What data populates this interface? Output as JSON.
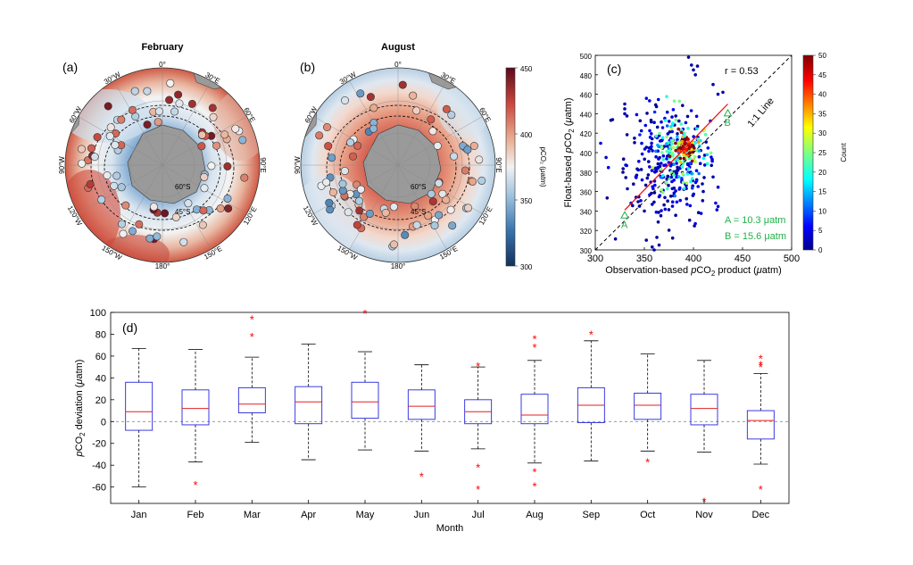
{
  "chart_data": [
    {
      "type": "heatmap",
      "panel": "(a)",
      "title": "February",
      "lat_labels": [
        "45°S",
        "60°S"
      ],
      "lon_labels": [
        "0°",
        "30°E",
        "60°E",
        "90°E",
        "120°E",
        "150°E",
        "180°",
        "150°W",
        "120°W",
        "90°W",
        "60°W",
        "30°W"
      ]
    },
    {
      "type": "heatmap",
      "panel": "(b)",
      "title": "August",
      "lat_labels": [
        "45°S",
        "60°S"
      ],
      "lon_labels": [
        "0°",
        "30°E",
        "60°E",
        "90°E",
        "120°E",
        "150°E",
        "180°",
        "150°W",
        "120°W",
        "90°W",
        "60°W",
        "30°W"
      ],
      "colorbar": {
        "label": "pCO₂ (μatm)",
        "ticks": [
          300,
          350,
          400,
          450
        ],
        "range": [
          300,
          450
        ]
      }
    },
    {
      "type": "scatter",
      "panel": "(c)",
      "xlabel_parts": [
        "Observation-based ",
        "p",
        "CO",
        "2",
        " product (",
        "μ",
        "atm)"
      ],
      "ylabel_parts": [
        "Float-based ",
        "p",
        "CO",
        "2",
        " (",
        "μ",
        "atm)"
      ],
      "xlim": [
        300,
        500
      ],
      "ylim": [
        300,
        500
      ],
      "xticks": [
        300,
        350,
        400,
        450,
        500
      ],
      "yticks": [
        300,
        320,
        340,
        360,
        380,
        400,
        420,
        440,
        460,
        480,
        500
      ],
      "annotations": {
        "r": "r = 0.53",
        "line": "1:1 Line",
        "A_label": "A",
        "B_label": "B",
        "A_value": "A = 10.3 μatm",
        "B_value": "B = 15.6 μatm"
      },
      "regression": {
        "x": [
          330,
          435
        ],
        "y": [
          341,
          450
        ]
      },
      "point_A": [
        330,
        330
      ],
      "point_B": [
        435,
        435
      ],
      "colorbar": {
        "label": "Count",
        "ticks": [
          0,
          5,
          10,
          15,
          20,
          25,
          30,
          35,
          40,
          45,
          50
        ],
        "range": [
          0,
          50
        ]
      },
      "clusters": [
        {
          "cx": 392,
          "cy": 405,
          "sx": 6,
          "sy": 8,
          "n": 70,
          "count": 42
        },
        {
          "cx": 385,
          "cy": 400,
          "sx": 14,
          "sy": 18,
          "n": 130,
          "count": 20
        },
        {
          "cx": 375,
          "cy": 390,
          "sx": 20,
          "sy": 28,
          "n": 170,
          "count": 6
        },
        {
          "cx": 370,
          "cy": 380,
          "sx": 25,
          "sy": 40,
          "n": 110,
          "count": 1
        }
      ],
      "outliers": [
        [
          330,
          450
        ],
        [
          330,
          445
        ],
        [
          330,
          440
        ],
        [
          395,
          498
        ],
        [
          398,
          490
        ],
        [
          400,
          485
        ],
        [
          402,
          480
        ],
        [
          420,
          470
        ],
        [
          430,
          462
        ],
        [
          425,
          460
        ],
        [
          360,
          300
        ],
        [
          358,
          303
        ],
        [
          352,
          310
        ],
        [
          365,
          305
        ],
        [
          350,
          340
        ],
        [
          345,
          345
        ],
        [
          410,
          360
        ],
        [
          420,
          375
        ]
      ]
    },
    {
      "type": "box",
      "panel": "(d)",
      "xlabel": "Month",
      "ylabel_parts": [
        "p",
        "CO",
        "2",
        " deviation (",
        "μ",
        "atm)"
      ],
      "ylim": [
        -75,
        100
      ],
      "yticks": [
        -60,
        -40,
        -20,
        0,
        20,
        40,
        60,
        80,
        100
      ],
      "categories": [
        "Jan",
        "Feb",
        "Mar",
        "Apr",
        "May",
        "Jun",
        "Jul",
        "Aug",
        "Sep",
        "Oct",
        "Nov",
        "Dec"
      ],
      "boxes": [
        {
          "lw": -60,
          "q1": -8,
          "med": 9,
          "q3": 36,
          "uw": 67,
          "outliers": []
        },
        {
          "lw": -37,
          "q1": -3,
          "med": 12,
          "q3": 29,
          "uw": 66,
          "outliers": [
            -58
          ]
        },
        {
          "lw": -19,
          "q1": 8,
          "med": 16,
          "q3": 31,
          "uw": 59,
          "outliers": [
            78,
            94
          ]
        },
        {
          "lw": -35,
          "q1": -2,
          "med": 18,
          "q3": 32,
          "uw": 71,
          "outliers": []
        },
        {
          "lw": -26,
          "q1": 3,
          "med": 18,
          "q3": 36,
          "uw": 64,
          "outliers": [
            99
          ]
        },
        {
          "lw": -27,
          "q1": 2,
          "med": 14,
          "q3": 29,
          "uw": 52,
          "outliers": [
            -50
          ]
        },
        {
          "lw": -25,
          "q1": -2,
          "med": 9,
          "q3": 20,
          "uw": 50,
          "outliers": [
            -42,
            -62,
            51
          ]
        },
        {
          "lw": -38,
          "q1": -2,
          "med": 6,
          "q3": 25,
          "uw": 56,
          "outliers": [
            -46,
            -59,
            68,
            76
          ]
        },
        {
          "lw": -36,
          "q1": -1,
          "med": 15,
          "q3": 31,
          "uw": 74,
          "outliers": [
            80
          ]
        },
        {
          "lw": -27,
          "q1": 2,
          "med": 15,
          "q3": 26,
          "uw": 62,
          "outliers": [
            -37
          ]
        },
        {
          "lw": -28,
          "q1": -3,
          "med": 12,
          "q3": 25,
          "uw": 56,
          "outliers": [
            -73
          ]
        },
        {
          "lw": -39,
          "q1": -16,
          "med": 1,
          "q3": 10,
          "uw": 44,
          "outliers": [
            -62,
            50,
            52,
            58
          ]
        }
      ]
    }
  ]
}
